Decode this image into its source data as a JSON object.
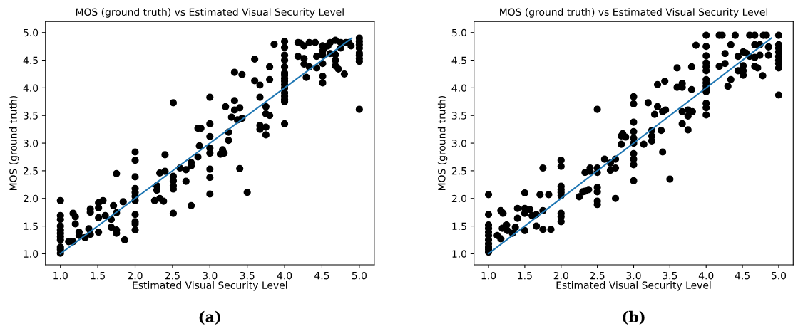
{
  "chart_data": [
    {
      "type": "scatter",
      "title": "MOS (ground truth) vs Estimated Visual Security Level",
      "xlabel": "Estimated Visual Security Level",
      "ylabel": "MOS (ground truth)",
      "annotations": [
        "(a)"
      ],
      "xlim": [
        0.8,
        5.2
      ],
      "ylim": [
        0.8,
        5.2
      ],
      "xticks": [
        {
          "value": 1.0,
          "label": "1.0"
        },
        {
          "value": 1.5,
          "label": "1.5"
        },
        {
          "value": 2.0,
          "label": "2.0"
        },
        {
          "value": 2.5,
          "label": "2.5"
        },
        {
          "value": 3.0,
          "label": "3.0"
        },
        {
          "value": 3.5,
          "label": "3.5"
        },
        {
          "value": 4.0,
          "label": "4.0"
        },
        {
          "value": 4.5,
          "label": "4.5"
        },
        {
          "value": 5.0,
          "label": "5.0"
        }
      ],
      "yticks": [
        {
          "value": 1.0,
          "label": "1.0"
        },
        {
          "value": 1.5,
          "label": "1.5"
        },
        {
          "value": 2.0,
          "label": "2.0"
        },
        {
          "value": 2.5,
          "label": "2.5"
        },
        {
          "value": 3.0,
          "label": "3.0"
        },
        {
          "value": 3.5,
          "label": "3.5"
        },
        {
          "value": 4.0,
          "label": "4.0"
        },
        {
          "value": 4.5,
          "label": "4.5"
        },
        {
          "value": 5.0,
          "label": "5.0"
        }
      ],
      "grid": false,
      "marker": "circle",
      "series": [
        {
          "color": "#000000",
          "x": [
            1.0,
            1.0,
            1.0,
            1.0,
            1.0,
            1.0,
            1.0,
            1.0,
            1.0,
            1.0,
            1.0,
            1.11,
            1.17,
            1.17,
            1.2,
            1.2,
            1.25,
            1.25,
            1.33,
            1.38,
            1.4,
            1.4,
            1.4,
            1.51,
            1.51,
            1.51,
            1.51,
            1.57,
            1.6,
            1.68,
            1.68,
            1.71,
            1.75,
            1.75,
            1.75,
            1.75,
            1.84,
            1.86,
            2.0,
            2.0,
            2.0,
            2.0,
            2.0,
            2.0,
            2.0,
            2.0,
            2.0,
            2.0,
            2.0,
            2.26,
            2.29,
            2.29,
            2.33,
            2.4,
            2.33,
            2.38,
            2.4,
            2.51,
            2.51,
            2.51,
            2.51,
            2.51,
            2.51,
            2.6,
            2.68,
            2.68,
            2.75,
            2.75,
            2.75,
            2.84,
            2.84,
            2.88,
            2.86,
            3.0,
            3.0,
            3.0,
            3.0,
            3.0,
            3.0,
            3.0,
            3.0,
            3.14,
            3.17,
            3.19,
            3.21,
            3.25,
            3.25,
            3.29,
            3.33,
            3.33,
            3.4,
            3.37,
            3.43,
            3.4,
            3.5,
            3.33,
            3.43,
            3.6,
            3.6,
            3.67,
            3.67,
            3.67,
            3.67,
            3.75,
            3.75,
            3.75,
            3.8,
            3.75,
            3.8,
            3.8,
            3.86,
            4.0,
            4.0,
            4.0,
            4.0,
            4.0,
            4.0,
            4.0,
            4.0,
            4.0,
            4.0,
            4.0,
            4.0,
            4.0,
            4.0,
            4.0,
            4.0,
            4.18,
            4.21,
            4.26,
            4.33,
            4.41,
            4.18,
            4.26,
            4.26,
            4.33,
            4.29,
            4.43,
            4.43,
            4.51,
            4.51,
            4.51,
            4.51,
            4.51,
            4.51,
            4.53,
            4.58,
            4.61,
            4.61,
            4.68,
            4.68,
            4.68,
            4.68,
            4.72,
            4.75,
            4.75,
            4.8,
            4.82,
            4.86,
            4.89,
            5.0,
            5.0,
            5.0,
            5.0,
            5.0,
            5.0,
            5.0,
            5.0,
            5.0
          ],
          "values": [
            1.96,
            1.69,
            1.62,
            1.5,
            1.43,
            1.37,
            1.31,
            1.25,
            1.12,
            1.08,
            1.01,
            1.22,
            1.22,
            1.73,
            1.67,
            1.54,
            1.39,
            1.33,
            1.29,
            1.45,
            1.35,
            1.81,
            1.75,
            1.92,
            1.83,
            1.65,
            1.39,
            1.96,
            1.69,
            1.62,
            1.48,
            1.87,
            1.43,
            1.37,
            2.45,
            1.74,
            1.94,
            1.25,
            2.84,
            2.69,
            2.39,
            2.18,
            2.11,
            2.04,
            1.96,
            1.71,
            1.58,
            1.54,
            1.43,
            1.96,
            2.23,
            2.15,
            2.46,
            2.49,
            2.0,
            1.95,
            2.79,
            3.73,
            2.4,
            2.32,
            2.23,
            2.17,
            1.73,
            2.55,
            2.52,
            2.31,
            2.65,
            2.59,
            1.87,
            2.75,
            3.27,
            3.27,
            2.95,
            3.83,
            3.35,
            3.12,
            2.91,
            2.82,
            2.53,
            2.38,
            2.08,
            2.8,
            2.88,
            2.82,
            3.66,
            3.2,
            3.05,
            3.47,
            3.77,
            3.6,
            3.64,
            3.42,
            3.45,
            2.54,
            2.11,
            4.28,
            4.24,
            4.52,
            4.13,
            4.05,
            3.83,
            3.32,
            3.25,
            3.29,
            3.66,
            3.53,
            3.5,
            3.15,
            4.38,
            4.15,
            4.79,
            4.84,
            4.73,
            4.59,
            4.5,
            4.38,
            4.27,
            4.23,
            4.17,
            4.12,
            4.06,
            4.0,
            3.91,
            3.85,
            3.79,
            3.75,
            3.35,
            4.82,
            4.81,
            4.76,
            4.82,
            4.82,
            4.57,
            4.53,
            4.43,
            4.38,
            4.19,
            4.57,
            4.36,
            4.76,
            4.67,
            4.59,
            4.44,
            4.21,
            4.09,
            4.72,
            4.76,
            4.82,
            4.62,
            4.86,
            4.6,
            4.5,
            4.4,
            4.34,
            4.82,
            4.72,
            4.25,
            4.82,
            4.82,
            4.76,
            4.9,
            4.84,
            4.78,
            4.72,
            4.63,
            4.59,
            4.53,
            4.48,
            3.61
          ]
        },
        {
          "type": "line",
          "color": "#1f77b4",
          "marker": "none",
          "x": [
            1.0,
            4.9
          ],
          "values": [
            1.0,
            4.9
          ]
        }
      ]
    },
    {
      "type": "scatter",
      "title": "MOS (ground truth) vs Estimated Visual Security Level",
      "xlabel": "Estimated Visual Security Level",
      "ylabel": "MOS (ground truth)",
      "annotations": [
        "(b)"
      ],
      "xlim": [
        0.8,
        5.2
      ],
      "ylim": [
        0.8,
        5.2
      ],
      "xticks": [
        {
          "value": 1.0,
          "label": "1.0"
        },
        {
          "value": 1.5,
          "label": "1.5"
        },
        {
          "value": 2.0,
          "label": "2.0"
        },
        {
          "value": 2.5,
          "label": "2.5"
        },
        {
          "value": 3.0,
          "label": "3.0"
        },
        {
          "value": 3.5,
          "label": "3.5"
        },
        {
          "value": 4.0,
          "label": "4.0"
        },
        {
          "value": 4.5,
          "label": "4.5"
        },
        {
          "value": 5.0,
          "label": "5.0"
        }
      ],
      "yticks": [
        {
          "value": 1.0,
          "label": "1.0"
        },
        {
          "value": 1.5,
          "label": "1.5"
        },
        {
          "value": 2.0,
          "label": "2.0"
        },
        {
          "value": 2.5,
          "label": "2.5"
        },
        {
          "value": 3.0,
          "label": "3.0"
        },
        {
          "value": 3.5,
          "label": "3.5"
        },
        {
          "value": 4.0,
          "label": "4.0"
        },
        {
          "value": 4.5,
          "label": "4.5"
        },
        {
          "value": 5.0,
          "label": "5.0"
        }
      ],
      "grid": false,
      "marker": "circle",
      "series": [
        {
          "color": "#000000",
          "x": [
            1.0,
            1.0,
            1.0,
            1.0,
            1.0,
            1.0,
            1.0,
            1.0,
            1.0,
            1.0,
            1.0,
            1.12,
            1.17,
            1.17,
            1.2,
            1.19,
            1.25,
            1.26,
            1.33,
            1.37,
            1.4,
            1.4,
            1.5,
            1.5,
            1.5,
            1.5,
            1.57,
            1.6,
            1.66,
            1.66,
            1.71,
            1.83,
            1.75,
            1.75,
            1.75,
            1.86,
            2.0,
            2.0,
            2.0,
            2.0,
            2.0,
            2.0,
            2.0,
            2.0,
            2.0,
            2.25,
            2.3,
            2.33,
            2.38,
            2.33,
            2.4,
            2.4,
            2.5,
            2.5,
            2.5,
            2.5,
            2.5,
            2.5,
            2.5,
            2.6,
            2.68,
            2.68,
            2.75,
            2.75,
            2.75,
            2.83,
            2.85,
            2.89,
            2.83,
            3.0,
            3.0,
            3.0,
            3.0,
            3.0,
            3.0,
            3.0,
            3.0,
            3.0,
            3.0,
            3.2,
            3.25,
            3.25,
            3.25,
            3.14,
            3.29,
            3.33,
            3.4,
            3.44,
            3.38,
            3.4,
            3.5,
            3.33,
            3.43,
            3.6,
            3.6,
            3.67,
            3.67,
            3.8,
            3.8,
            3.67,
            3.75,
            3.81,
            3.75,
            3.67,
            3.75,
            3.86,
            4.0,
            4.0,
            4.0,
            4.0,
            4.0,
            4.0,
            4.0,
            4.0,
            4.0,
            4.0,
            4.0,
            4.0,
            4.0,
            4.0,
            4.18,
            4.22,
            4.4,
            4.18,
            4.26,
            4.26,
            4.34,
            4.34,
            4.3,
            4.44,
            4.44,
            4.51,
            4.51,
            4.51,
            4.51,
            4.55,
            4.6,
            4.67,
            4.6,
            4.67,
            4.67,
            4.67,
            4.71,
            4.74,
            4.74,
            4.78,
            4.79,
            4.83,
            4.86,
            4.86,
            5.0,
            5.0,
            5.0,
            5.0,
            5.0,
            5.0,
            5.0,
            5.0,
            5.0
          ],
          "values": [
            2.07,
            1.71,
            1.52,
            1.46,
            1.39,
            1.33,
            1.25,
            1.18,
            1.12,
            1.08,
            1.03,
            1.33,
            1.27,
            1.78,
            1.73,
            1.46,
            1.52,
            1.42,
            1.37,
            1.48,
            1.82,
            1.64,
            2.1,
            1.82,
            1.73,
            1.42,
            1.8,
            1.69,
            1.71,
            1.5,
            2.07,
            2.07,
            2.55,
            1.78,
            1.44,
            1.44,
            2.69,
            2.58,
            2.22,
            2.16,
            2.11,
            2.05,
            1.73,
            1.67,
            1.58,
            2.03,
            2.12,
            2.13,
            2.16,
            2.47,
            2.55,
            2.49,
            3.61,
            2.55,
            2.47,
            2.2,
            2.12,
            1.95,
            1.89,
            2.71,
            2.64,
            2.51,
            2.71,
            2.55,
            2.0,
            3.13,
            3.17,
            3.11,
            2.98,
            3.84,
            3.71,
            3.38,
            3.21,
            3.09,
            3.0,
            2.81,
            2.71,
            2.61,
            2.32,
            3.73,
            3.23,
            3.13,
            3.04,
            2.98,
            3.52,
            3.66,
            3.57,
            3.6,
            3.23,
            2.84,
            2.35,
            4.06,
            4.12,
            4.36,
            4.01,
            4.08,
            4.01,
            4.38,
            3.97,
            3.57,
            3.6,
            3.57,
            3.49,
            3.35,
            3.24,
            4.77,
            4.95,
            4.75,
            4.58,
            4.45,
            4.38,
            4.31,
            4.15,
            4.09,
            4.03,
            3.97,
            3.93,
            3.72,
            3.64,
            3.51,
            4.95,
            4.95,
            4.95,
            4.39,
            4.44,
            4.62,
            4.78,
            4.15,
            4.03,
            4.57,
            4.31,
            4.65,
            4.4,
            4.31,
            4.23,
            4.63,
            4.95,
            4.95,
            4.57,
            4.78,
            4.55,
            4.39,
            4.36,
            4.78,
            4.59,
            4.22,
            4.95,
            4.95,
            4.74,
            4.59,
            4.95,
            4.78,
            4.72,
            4.65,
            4.57,
            4.5,
            4.44,
            4.36,
            3.87
          ]
        },
        {
          "type": "line",
          "color": "#1f77b4",
          "marker": "none",
          "x": [
            1.0,
            4.9
          ],
          "values": [
            1.0,
            4.9
          ]
        }
      ]
    }
  ]
}
